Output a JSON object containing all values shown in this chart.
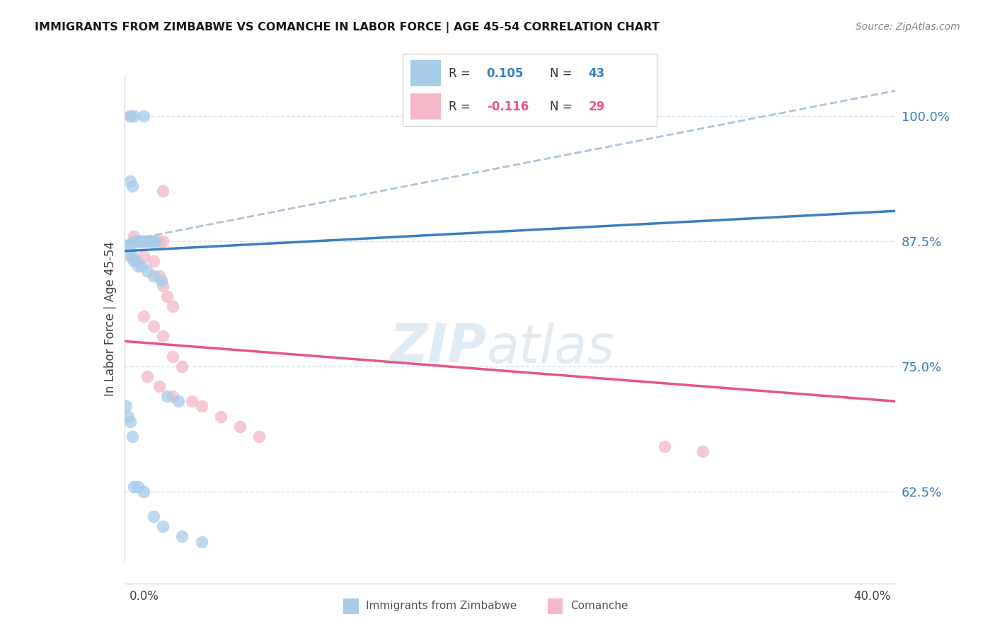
{
  "title": "IMMIGRANTS FROM ZIMBABWE VS COMANCHE IN LABOR FORCE | AGE 45-54 CORRELATION CHART",
  "source": "Source: ZipAtlas.com",
  "ylabel": "In Labor Force | Age 45-54",
  "ytick_labels": [
    "62.5%",
    "75.0%",
    "87.5%",
    "100.0%"
  ],
  "ytick_values": [
    0.625,
    0.75,
    0.875,
    1.0
  ],
  "xlim": [
    0.0,
    0.4
  ],
  "ylim": [
    0.555,
    1.04
  ],
  "watermark_zip": "ZIP",
  "watermark_atlas": "atlas",
  "blue_color": "#a8cce8",
  "pink_color": "#f4b8c8",
  "blue_line_color": "#3a7fc1",
  "pink_line_color": "#e85585",
  "dashed_line_color": "#b0c4d8",
  "legend_blue_r": "0.105",
  "legend_blue_n": "43",
  "legend_pink_r": "-0.116",
  "legend_pink_n": "29",
  "zimbabwe_x": [
    0.003,
    0.005,
    0.01,
    0.003,
    0.004,
    0.005,
    0.006,
    0.007,
    0.007,
    0.008,
    0.008,
    0.009,
    0.01,
    0.011,
    0.012,
    0.013,
    0.014,
    0.015,
    0.016,
    0.002,
    0.003,
    0.003,
    0.004,
    0.005,
    0.006,
    0.007,
    0.009,
    0.012,
    0.015,
    0.019,
    0.022,
    0.028,
    0.001,
    0.002,
    0.003,
    0.004,
    0.005,
    0.007,
    0.01,
    0.015,
    0.02,
    0.03,
    0.04
  ],
  "zimbabwe_y": [
    1.0,
    1.0,
    1.0,
    0.935,
    0.93,
    0.875,
    0.875,
    0.875,
    0.875,
    0.875,
    0.875,
    0.875,
    0.875,
    0.875,
    0.875,
    0.875,
    0.875,
    0.875,
    0.875,
    0.87,
    0.87,
    0.86,
    0.86,
    0.855,
    0.855,
    0.85,
    0.85,
    0.845,
    0.84,
    0.835,
    0.72,
    0.715,
    0.71,
    0.7,
    0.695,
    0.68,
    0.63,
    0.63,
    0.625,
    0.6,
    0.59,
    0.58,
    0.575
  ],
  "comanche_x": [
    0.003,
    0.02,
    0.005,
    0.008,
    0.012,
    0.015,
    0.018,
    0.02,
    0.01,
    0.015,
    0.018,
    0.02,
    0.022,
    0.025,
    0.01,
    0.015,
    0.02,
    0.025,
    0.03,
    0.012,
    0.018,
    0.025,
    0.035,
    0.04,
    0.05,
    0.06,
    0.07,
    0.28,
    0.3
  ],
  "comanche_y": [
    1.0,
    0.925,
    0.88,
    0.875,
    0.875,
    0.875,
    0.875,
    0.875,
    0.86,
    0.855,
    0.84,
    0.83,
    0.82,
    0.81,
    0.8,
    0.79,
    0.78,
    0.76,
    0.75,
    0.74,
    0.73,
    0.72,
    0.715,
    0.71,
    0.7,
    0.69,
    0.68,
    0.67,
    0.665
  ],
  "blue_trend": [
    0.865,
    0.905
  ],
  "pink_trend": [
    0.775,
    0.715
  ],
  "dashed_trend": [
    0.875,
    1.025
  ],
  "bg_color": "#ffffff",
  "grid_color": "#d8e4ee"
}
